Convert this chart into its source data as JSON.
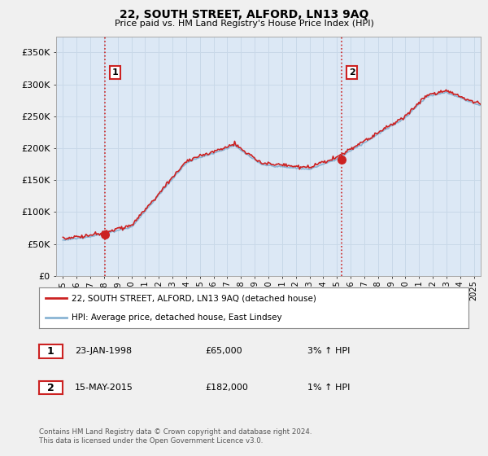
{
  "title": "22, SOUTH STREET, ALFORD, LN13 9AQ",
  "subtitle": "Price paid vs. HM Land Registry's House Price Index (HPI)",
  "ylim": [
    0,
    375000
  ],
  "yticks": [
    0,
    50000,
    100000,
    150000,
    200000,
    250000,
    300000,
    350000
  ],
  "ytick_labels": [
    "£0",
    "£50K",
    "£100K",
    "£150K",
    "£200K",
    "£250K",
    "£300K",
    "£350K"
  ],
  "hpi_color": "#8ab4d4",
  "price_color": "#cc2222",
  "dot_color": "#cc2222",
  "vline_color": "#cc2222",
  "grid_color": "#c8d8e8",
  "bg_color": "#f0f0f0",
  "plot_bg_color": "#dce8f5",
  "legend_label_red": "22, SOUTH STREET, ALFORD, LN13 9AQ (detached house)",
  "legend_label_blue": "HPI: Average price, detached house, East Lindsey",
  "transaction1_date": "23-JAN-1998",
  "transaction1_price": "£65,000",
  "transaction1_hpi": "3% ↑ HPI",
  "transaction1_year": 1998.06,
  "transaction1_value": 65000,
  "transaction2_date": "15-MAY-2015",
  "transaction2_price": "£182,000",
  "transaction2_hpi": "1% ↑ HPI",
  "transaction2_year": 2015.37,
  "transaction2_value": 182000,
  "footer": "Contains HM Land Registry data © Crown copyright and database right 2024.\nThis data is licensed under the Open Government Licence v3.0.",
  "xmin": 1994.5,
  "xmax": 2025.5
}
